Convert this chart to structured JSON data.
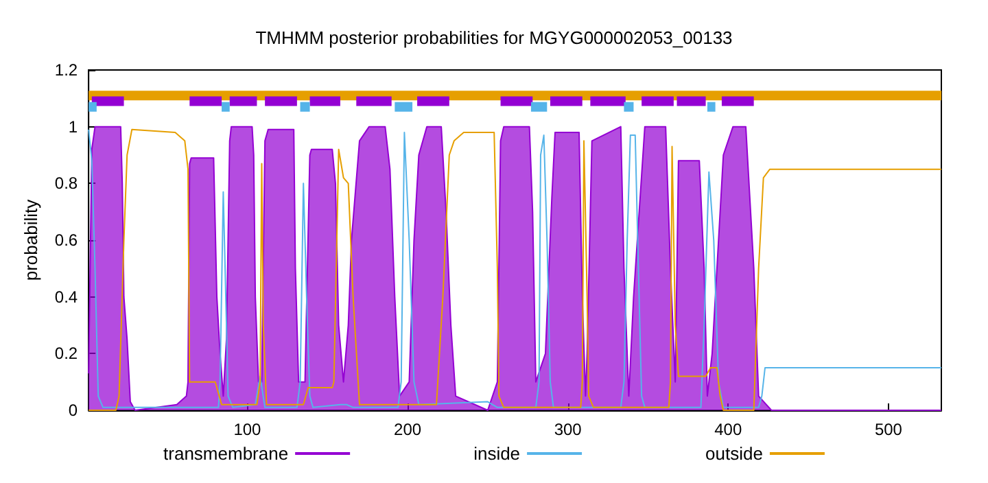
{
  "chart_data": {
    "type": "line",
    "title": "TMHMM posterior probabilities for MGYG000002053_00133",
    "ylabel": "probability",
    "xlim": [
      1,
      533
    ],
    "xticks": [
      100,
      200,
      300,
      400,
      500
    ],
    "ylim": [
      0,
      1.2
    ],
    "yticks": [
      0,
      0.2,
      0.4,
      0.6,
      0.8,
      1,
      1.2
    ],
    "grid": false,
    "legend": "bottom",
    "marker": "none",
    "series": [
      {
        "name": "transmembrane",
        "type": "area",
        "color": "#9400d3",
        "x": [
          1,
          3,
          5,
          21,
          22,
          23,
          25,
          27,
          30,
          56,
          62,
          63,
          64,
          65,
          79,
          81,
          83,
          85,
          87,
          89,
          90,
          103,
          104,
          105,
          107,
          109,
          111,
          113,
          129,
          130,
          132,
          136,
          139,
          140,
          153,
          155,
          157,
          160,
          163,
          165,
          170,
          176,
          186,
          189,
          192,
          195,
          201,
          204,
          207,
          212,
          221,
          224,
          227,
          230,
          250,
          256,
          258,
          260,
          276,
          278,
          280,
          286,
          290,
          292,
          307,
          309,
          311,
          312,
          315,
          333,
          335,
          338,
          341,
          348,
          361,
          364,
          367,
          369,
          382,
          385,
          387,
          390,
          397,
          403,
          411,
          416,
          419,
          427,
          533
        ],
        "values": [
          0.13,
          0.92,
          1,
          1,
          0.8,
          0.4,
          0.25,
          0.03,
          0,
          0.02,
          0.05,
          0.1,
          0.87,
          0.89,
          0.89,
          0.4,
          0.2,
          0.05,
          0.25,
          0.95,
          1,
          1,
          0.9,
          0.4,
          0.1,
          0.1,
          0.95,
          0.99,
          0.99,
          0.5,
          0.1,
          0.1,
          0.9,
          0.92,
          0.92,
          0.8,
          0.3,
          0.1,
          0.3,
          0.6,
          0.95,
          1,
          1,
          0.85,
          0.4,
          0.05,
          0.1,
          0.6,
          0.9,
          1,
          1,
          0.7,
          0.3,
          0.05,
          0,
          0.1,
          0.95,
          1,
          1,
          0.7,
          0.1,
          0.2,
          0.75,
          0.98,
          0.98,
          0.4,
          0.05,
          0.2,
          0.95,
          1,
          0.5,
          0.05,
          0.4,
          1,
          1,
          0.5,
          0.1,
          0.88,
          0.88,
          0.5,
          0.05,
          0.2,
          0.9,
          1,
          1,
          0.5,
          0.05,
          0,
          0
        ]
      },
      {
        "name": "inside",
        "color": "#56b4e9",
        "x": [
          1,
          3,
          5,
          7,
          10,
          82,
          83,
          85,
          87,
          88,
          91,
          105,
          108,
          111,
          131,
          133,
          135,
          137,
          139,
          141,
          158,
          162,
          166,
          194,
          196,
          198,
          201,
          204,
          207,
          250,
          256,
          280,
          282,
          283,
          285,
          287,
          289,
          291,
          333,
          335,
          337,
          339,
          342,
          344,
          346,
          348,
          383,
          385,
          388,
          391,
          394,
          397,
          419,
          421,
          423,
          533
        ],
        "values": [
          0.99,
          0.88,
          0.5,
          0.05,
          0.01,
          0.01,
          0.1,
          0.77,
          0.3,
          0.05,
          0.01,
          0.02,
          0.12,
          0.01,
          0.01,
          0.1,
          0.8,
          0.4,
          0.05,
          0.01,
          0.02,
          0.02,
          0.01,
          0.01,
          0.1,
          0.98,
          0.6,
          0.1,
          0.02,
          0.03,
          0.01,
          0.01,
          0.1,
          0.9,
          0.97,
          0.6,
          0.1,
          0.01,
          0.01,
          0.1,
          0.6,
          0.97,
          0.97,
          0.5,
          0.05,
          0.01,
          0.01,
          0.3,
          0.84,
          0.6,
          0.1,
          0.01,
          0.01,
          0.05,
          0.15,
          0.15
        ]
      },
      {
        "name": "outside",
        "color": "#e69f00",
        "x": [
          1,
          18,
          20,
          23,
          25,
          28,
          55,
          61,
          63,
          64,
          80,
          84,
          106,
          108,
          109,
          110,
          112,
          135,
          138,
          153,
          154,
          157,
          160,
          163,
          166,
          170,
          199,
          218,
          222,
          226,
          229,
          235,
          254,
          256,
          257,
          260,
          308,
          309,
          310,
          312,
          313,
          316,
          363,
          364,
          365,
          367,
          369,
          386,
          389,
          393,
          395,
          397,
          416,
          419,
          422,
          426,
          533
        ],
        "values": [
          0,
          0,
          0.05,
          0.6,
          0.9,
          0.99,
          0.98,
          0.95,
          0.85,
          0.1,
          0.1,
          0.02,
          0.02,
          0.1,
          0.87,
          0.3,
          0.02,
          0.02,
          0.08,
          0.08,
          0.1,
          0.92,
          0.82,
          0.8,
          0.4,
          0.02,
          0.02,
          0.02,
          0.4,
          0.9,
          0.95,
          0.98,
          0.98,
          0.5,
          0.05,
          0.01,
          0.01,
          0.1,
          0.95,
          0.4,
          0.05,
          0.01,
          0.01,
          0.1,
          0.93,
          0.3,
          0.12,
          0.12,
          0.15,
          0.15,
          0.05,
          0,
          0,
          0.5,
          0.82,
          0.85,
          0.85
        ]
      },
      {
        "color": "#e69f00",
        "x": [
          1,
          533
        ],
        "values": [
          1.11,
          1.11
        ]
      },
      {
        "color": "#9400d3",
        "x": [
          3,
          23,
          null,
          64,
          84,
          null,
          89,
          106,
          null,
          111,
          131,
          null,
          139,
          158,
          null,
          168,
          190,
          null,
          206,
          226,
          null,
          258,
          278,
          null,
          289,
          309,
          null,
          314,
          336,
          null,
          346,
          366,
          null,
          368,
          386,
          null,
          396,
          416
        ],
        "values": [
          1.09,
          1.09,
          null,
          1.09,
          1.09,
          null,
          1.09,
          1.09,
          null,
          1.09,
          1.09,
          null,
          1.09,
          1.09,
          null,
          1.09,
          1.09,
          null,
          1.09,
          1.09,
          null,
          1.09,
          1.09,
          null,
          1.09,
          1.09,
          null,
          1.09,
          1.09,
          null,
          1.09,
          1.09,
          null,
          1.09,
          1.09,
          null,
          1.09,
          1.09
        ]
      },
      {
        "color": "#56b4e9",
        "x": [
          1,
          6,
          null,
          84,
          89,
          null,
          133,
          139,
          null,
          192,
          203,
          null,
          277,
          287,
          null,
          335,
          341,
          null,
          387,
          392
        ],
        "values": [
          1.07,
          1.07,
          null,
          1.07,
          1.07,
          null,
          1.07,
          1.07,
          null,
          1.07,
          1.07,
          null,
          1.07,
          1.07,
          null,
          1.07,
          1.07,
          null,
          1.07,
          1.07
        ]
      }
    ]
  }
}
